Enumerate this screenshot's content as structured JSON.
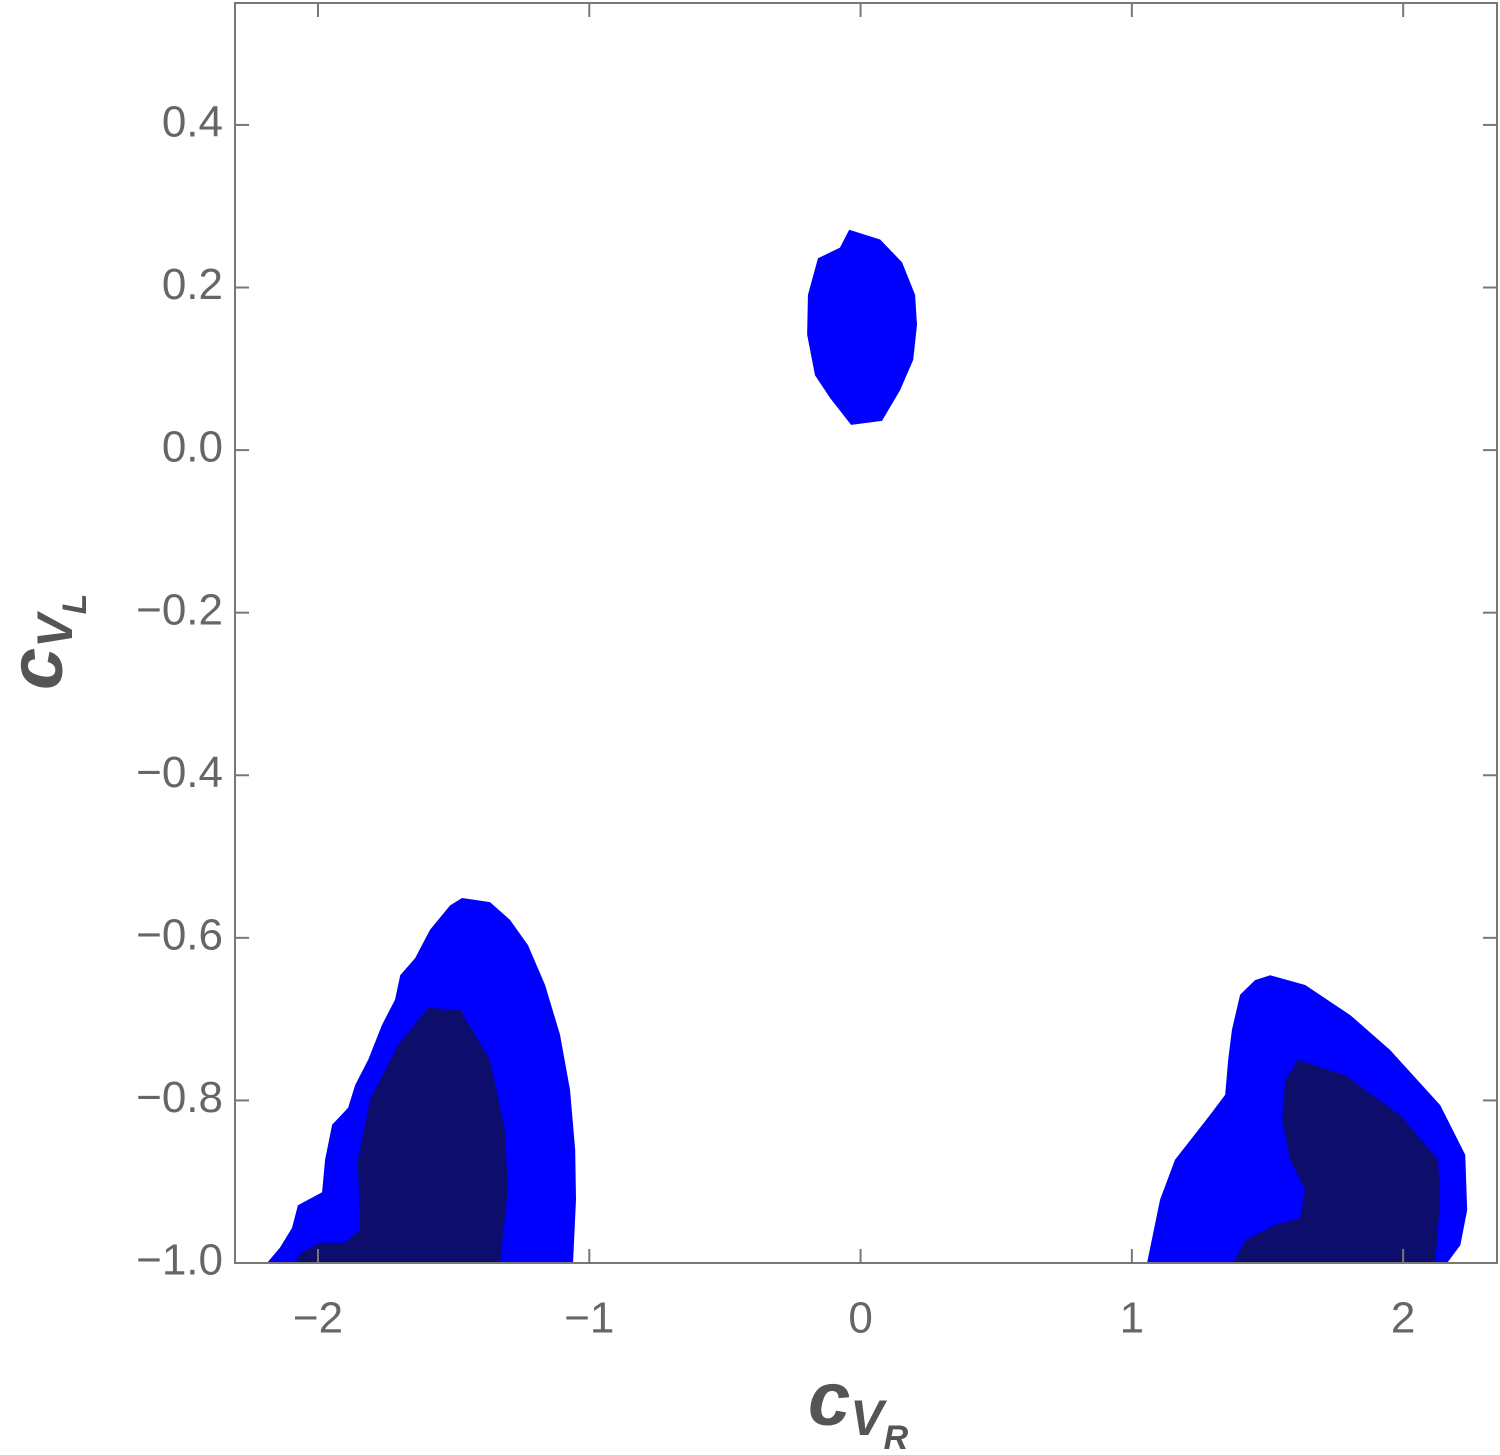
{
  "chart_data": {
    "type": "contour",
    "x_label": {
      "base": "c",
      "sub": "V",
      "subsub": "R"
    },
    "y_label": {
      "base": "c",
      "sub": "V",
      "subsub": "L"
    },
    "xlim": [
      -2.306,
      2.346
    ],
    "ylim": [
      -1.0,
      0.55
    ],
    "xticks": [
      {
        "value": -2,
        "label": "−2"
      },
      {
        "value": -1,
        "label": "−1"
      },
      0,
      1,
      2
    ],
    "yticks": [
      {
        "value": -1.0,
        "label": "−1.0"
      },
      {
        "value": -0.8,
        "label": "−0.8"
      },
      {
        "value": -0.6,
        "label": "−0.6"
      },
      {
        "value": -0.4,
        "label": "−0.4"
      },
      {
        "value": -0.2,
        "label": "−0.2"
      },
      {
        "value": 0.0,
        "label": "0.0"
      },
      0.2,
      0.4
    ],
    "regions": [
      {
        "color": "#0000ff",
        "x": [
          -0.042,
          0.072,
          0.153,
          0.201,
          0.208,
          0.194,
          0.146,
          0.079,
          -0.035,
          -0.112,
          -0.168,
          -0.197,
          -0.194,
          -0.157,
          -0.076
        ],
        "y": [
          0.271,
          0.259,
          0.231,
          0.191,
          0.154,
          0.111,
          0.074,
          0.036,
          0.031,
          0.064,
          0.092,
          0.142,
          0.191,
          0.236,
          0.249
        ]
      },
      {
        "color": "#0000ff",
        "x": [
          -2.188,
          -2.14,
          -2.096,
          -2.074,
          -1.985,
          -1.974,
          -1.948,
          -1.889,
          -1.863,
          -1.815,
          -1.764,
          -1.716,
          -1.697,
          -1.642,
          -1.587,
          -1.513,
          -1.469,
          -1.366,
          -1.292,
          -1.226,
          -1.163,
          -1.108,
          -1.071,
          -1.052,
          -1.049,
          -1.06
        ],
        "y": [
          -1.0,
          -0.981,
          -0.957,
          -0.929,
          -0.913,
          -0.873,
          -0.83,
          -0.809,
          -0.781,
          -0.75,
          -0.707,
          -0.676,
          -0.646,
          -0.625,
          -0.59,
          -0.56,
          -0.551,
          -0.556,
          -0.578,
          -0.609,
          -0.658,
          -0.719,
          -0.787,
          -0.861,
          -0.922,
          -1.0
        ]
      },
      {
        "color": "#0d0d6b",
        "x": [
          -2.085,
          -2.066,
          -1.993,
          -1.9,
          -1.845,
          -1.853,
          -1.808,
          -1.705,
          -1.594,
          -1.476,
          -1.366,
          -1.311,
          -1.3,
          -1.329
        ],
        "y": [
          -1.0,
          -0.988,
          -0.975,
          -0.975,
          -0.959,
          -0.873,
          -0.799,
          -0.732,
          -0.686,
          -0.689,
          -0.75,
          -0.836,
          -0.91,
          -1.0
        ]
      },
      {
        "color": "#0000ff",
        "x": [
          1.056,
          1.104,
          1.159,
          1.288,
          1.344,
          1.355,
          1.369,
          1.399,
          1.454,
          1.51,
          1.639,
          1.805,
          1.952,
          2.137,
          2.229,
          2.236,
          2.211,
          2.162
        ],
        "y": [
          -1.0,
          -0.922,
          -0.873,
          -0.818,
          -0.793,
          -0.75,
          -0.713,
          -0.67,
          -0.652,
          -0.646,
          -0.658,
          -0.695,
          -0.738,
          -0.806,
          -0.867,
          -0.935,
          -0.978,
          -1.0
        ]
      },
      {
        "color": "#0d0d6b",
        "x": [
          1.373,
          1.418,
          1.528,
          1.62,
          1.639,
          1.583,
          1.554,
          1.565,
          1.613,
          1.786,
          1.989,
          2.129,
          2.137,
          2.118
        ],
        "y": [
          -1.0,
          -0.972,
          -0.953,
          -0.945,
          -0.91,
          -0.873,
          -0.824,
          -0.775,
          -0.75,
          -0.769,
          -0.818,
          -0.873,
          -0.922,
          -1.0
        ]
      }
    ]
  }
}
